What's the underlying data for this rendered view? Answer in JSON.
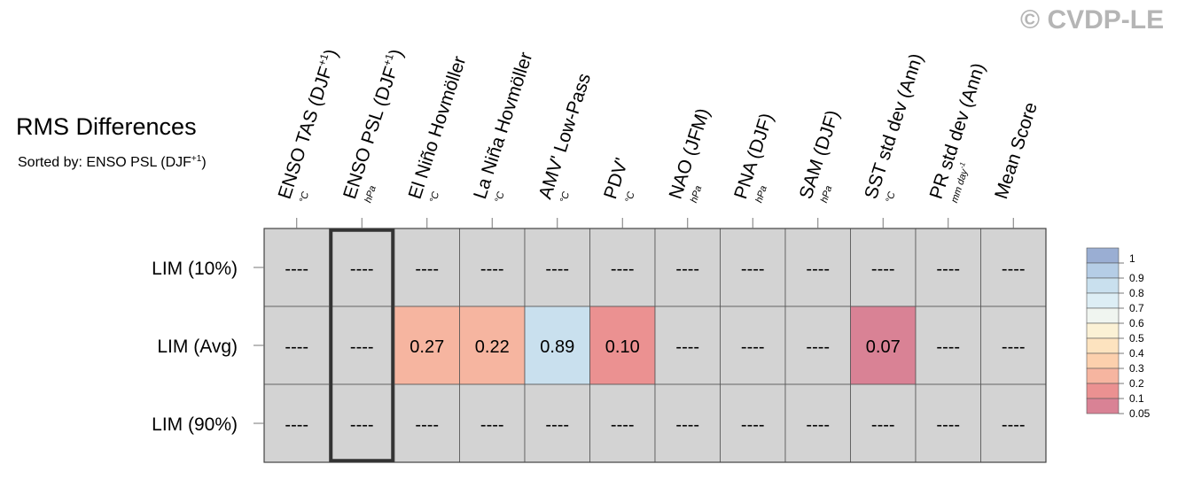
{
  "watermark": "© CVDP-LE",
  "title": "RMS Differences",
  "subtitle": {
    "prefix": "Sorted by: ENSO PSL (DJF",
    "sup": "+1",
    "suffix": ")"
  },
  "chart_data": {
    "type": "heatmap",
    "rows": [
      "LIM (10%)",
      "LIM (Avg)",
      "LIM (90%)"
    ],
    "columns": [
      {
        "label": "ENSO TAS (DJF",
        "sup": "+1",
        "tail": ")",
        "unit": "°C"
      },
      {
        "label": "ENSO PSL (DJF",
        "sup": "+1",
        "tail": ")",
        "unit": "hPa"
      },
      {
        "label": "El Niño Hovmöller",
        "unit": "°C"
      },
      {
        "label": "La Niña Hovmöller",
        "unit": "°C"
      },
      {
        "label": "AMV' Low-Pass",
        "unit": "°C"
      },
      {
        "label": "PDV'",
        "unit": "°C"
      },
      {
        "label": "NAO (JFM)",
        "unit": "hPa"
      },
      {
        "label": "PNA (DJF)",
        "unit": "hPa"
      },
      {
        "label": "SAM (DJF)",
        "unit": "hPa"
      },
      {
        "label": "SST std dev (Ann)",
        "unit": "°C"
      },
      {
        "label": "PR std dev (Ann)",
        "unit": "mm day",
        "unit_sup": "-1"
      },
      {
        "label": "Mean Score",
        "unit": ""
      }
    ],
    "values": [
      [
        null,
        null,
        null,
        null,
        null,
        null,
        null,
        null,
        null,
        null,
        null,
        null
      ],
      [
        null,
        null,
        0.27,
        0.22,
        0.89,
        0.1,
        null,
        null,
        null,
        0.07,
        null,
        null
      ],
      [
        null,
        null,
        null,
        null,
        null,
        null,
        null,
        null,
        null,
        null,
        null,
        null
      ]
    ],
    "cell_text": [
      [
        "----",
        "----",
        "----",
        "----",
        "----",
        "----",
        "----",
        "----",
        "----",
        "----",
        "----",
        "----"
      ],
      [
        "----",
        "----",
        "0.27",
        "0.22",
        "0.89",
        "0.10",
        "----",
        "----",
        "----",
        "0.07",
        "----",
        "----"
      ],
      [
        "----",
        "----",
        "----",
        "----",
        "----",
        "----",
        "----",
        "----",
        "----",
        "----",
        "----",
        "----"
      ]
    ],
    "highlighted_column": 1,
    "missing_color": "#d3d3d3",
    "colorbar": {
      "levels": [
        "1",
        "0.9",
        "0.8",
        "0.7",
        "0.6",
        "0.5",
        "0.4",
        "0.3",
        "0.2",
        "0.1",
        "0.05"
      ],
      "colors": [
        "#9aaed3",
        "#b5cde6",
        "#c9e0ee",
        "#ddeef5",
        "#f0f5f0",
        "#fbf1d5",
        "#fde3bf",
        "#fcd0ad",
        "#f6b5a0",
        "#eb9191",
        "#d98295"
      ]
    }
  }
}
